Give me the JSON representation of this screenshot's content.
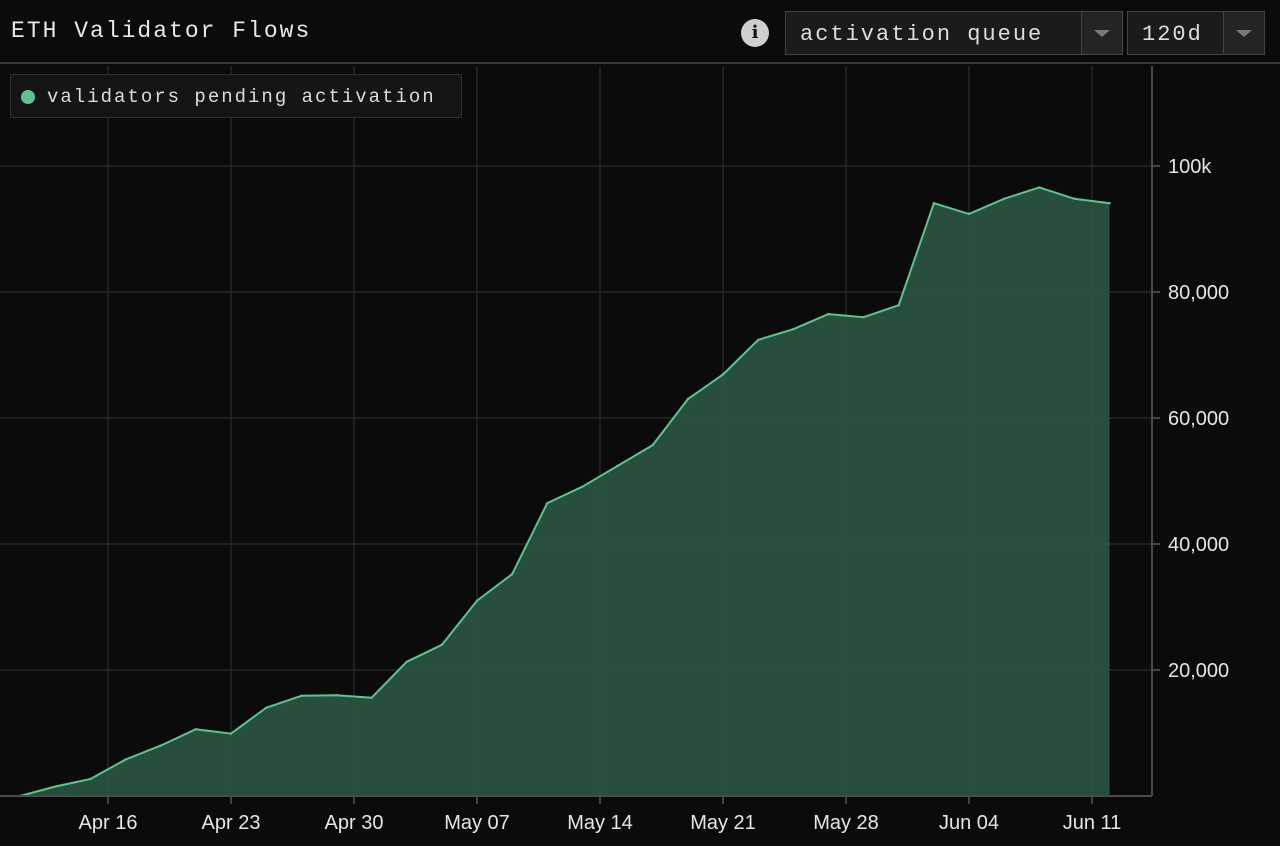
{
  "header": {
    "title": "ETH Validator Flows",
    "metric_select": "activation queue",
    "range_select": "120d",
    "info_icon": "info-icon"
  },
  "legend": {
    "label": "validators pending activation",
    "color": "#5ec38f"
  },
  "colors": {
    "line": "#5ec38f",
    "fill": "#2a5240",
    "grid": "#262626",
    "background": "#0b0b0b"
  },
  "chart_data": {
    "type": "area",
    "title": "ETH Validator Flows",
    "xlabel": "",
    "ylabel": "",
    "x_ticks": [
      "Apr 16",
      "Apr 23",
      "Apr 30",
      "May 07",
      "May 14",
      "May 21",
      "May 28",
      "Jun 04",
      "Jun 11"
    ],
    "y_ticks": [
      "20,000",
      "40,000",
      "60,000",
      "80,000",
      "100k"
    ],
    "ylim": [
      0,
      115000
    ],
    "grid": true,
    "legend_position": "top-left",
    "series": [
      {
        "name": "validators pending activation",
        "x": [
          "2023-04-11",
          "2023-04-13",
          "2023-04-15",
          "2023-04-17",
          "2023-04-19",
          "2023-04-21",
          "2023-04-23",
          "2023-04-25",
          "2023-04-27",
          "2023-04-29",
          "2023-05-01",
          "2023-05-03",
          "2023-05-05",
          "2023-05-07",
          "2023-05-09",
          "2023-05-11",
          "2023-05-13",
          "2023-05-15",
          "2023-05-17",
          "2023-05-19",
          "2023-05-21",
          "2023-05-23",
          "2023-05-25",
          "2023-05-27",
          "2023-05-29",
          "2023-05-31",
          "2023-06-02",
          "2023-06-04",
          "2023-06-06",
          "2023-06-08",
          "2023-06-10",
          "2023-06-12"
        ],
        "values": [
          0,
          1500,
          2700,
          5800,
          8000,
          10600,
          9900,
          14000,
          15900,
          16000,
          15600,
          21300,
          24000,
          31000,
          35200,
          46500,
          49100,
          52400,
          55700,
          63000,
          66900,
          72400,
          74100,
          76500,
          76000,
          77900,
          94100,
          92400,
          94800,
          96600,
          94800,
          94100
        ]
      }
    ]
  }
}
